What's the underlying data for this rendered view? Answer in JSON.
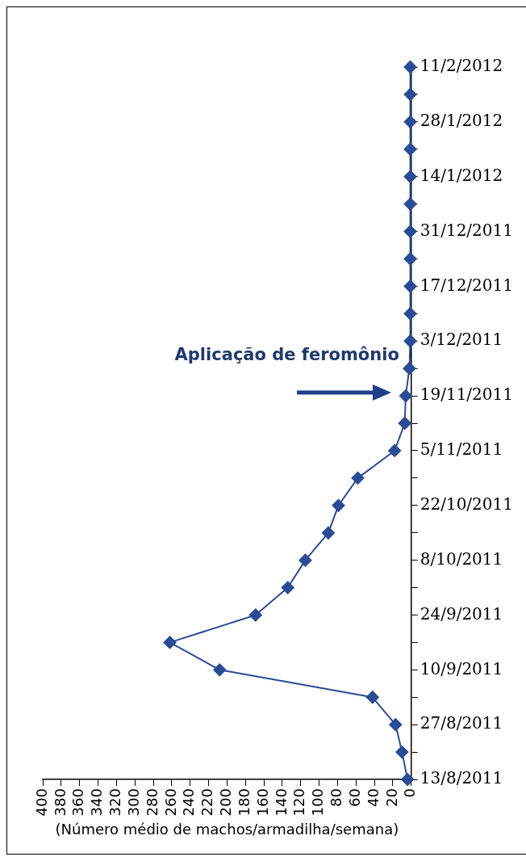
{
  "chart_data": {
    "type": "line",
    "orientation": "horizontal",
    "xlabel": "(Número médio de machos/armadilha/semana)",
    "categories": [
      "11/2/2012",
      null,
      "28/1/2012",
      null,
      "14/1/2012",
      null,
      "31/12/2011",
      null,
      "17/12/2011",
      null,
      "3/12/2011",
      null,
      "19/11/2011",
      null,
      "5/11/2011",
      null,
      "22/10/2011",
      null,
      "8/10/2011",
      null,
      "24/9/2011",
      null,
      "10/9/2011",
      null,
      "27/8/2011",
      null,
      "13/8/2011"
    ],
    "series": [
      {
        "color": "#2b4b95",
        "values": [
          1,
          1,
          1,
          1,
          1,
          1,
          1,
          1,
          1,
          1,
          1,
          2,
          6,
          7,
          18,
          58,
          79,
          90,
          115,
          134,
          169,
          262,
          208,
          42,
          17,
          10,
          4
        ]
      }
    ],
    "xlim": [
      400,
      0
    ],
    "xticks": [
      0,
      20,
      40,
      60,
      80,
      100,
      120,
      140,
      160,
      180,
      200,
      220,
      240,
      260,
      280,
      300,
      320,
      340,
      360,
      380,
      400
    ],
    "grid": false,
    "legend": false,
    "marker": "diamond",
    "line_style": "solid",
    "annotations": [
      "Aplicação de feromônio"
    ]
  }
}
